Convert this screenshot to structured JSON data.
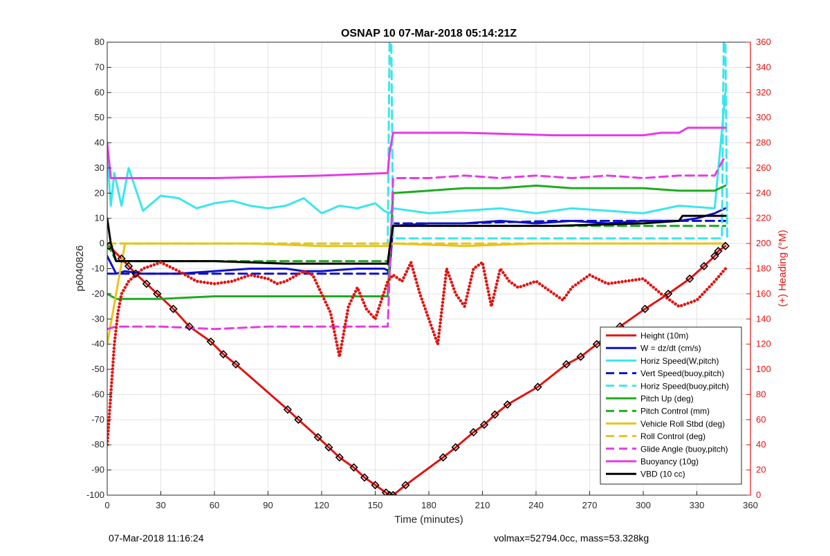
{
  "chart_data": {
    "type": "line",
    "title": "OSNAP 10 07-Mar-2018 05:14:21Z",
    "xlabel": "Time (minutes)",
    "ylabel_left": "p6040826",
    "ylabel_right": "(+) Heading (°M)",
    "xlim": [
      0,
      360
    ],
    "ylim_left": [
      -100,
      80
    ],
    "ylim_right": [
      0,
      360
    ],
    "xticks": [
      0,
      30,
      60,
      90,
      120,
      150,
      180,
      210,
      240,
      270,
      300,
      330,
      360
    ],
    "yticks_left": [
      -100,
      -90,
      -80,
      -70,
      -60,
      -50,
      -40,
      -30,
      -20,
      -10,
      0,
      10,
      20,
      30,
      40,
      50,
      60,
      70,
      80
    ],
    "yticks_right": [
      0,
      20,
      40,
      60,
      80,
      100,
      120,
      140,
      160,
      180,
      200,
      220,
      240,
      260,
      280,
      300,
      320,
      340,
      360
    ],
    "grid": true,
    "legend_position": "bottom-right",
    "colors": {
      "red": "#e2120f",
      "blue": "#1010c8",
      "cyan": "#3ae6ec",
      "green": "#1faa1f",
      "yellow": "#e8c41a",
      "magenta": "#e63ae6",
      "black": "#000000",
      "right_axis": "#e2120f"
    },
    "series": [
      {
        "name": "Height (10m)",
        "color": "#e2120f",
        "dash": "solid",
        "axis": "left",
        "x": [
          1,
          8,
          12,
          16,
          22,
          28,
          37,
          46,
          58,
          65,
          72,
          101,
          107,
          118,
          124,
          130,
          138,
          144,
          150,
          156,
          158,
          160,
          167,
          188,
          195,
          205,
          211,
          217,
          224,
          241,
          257,
          265,
          274,
          287,
          301,
          314,
          326,
          334,
          340,
          342,
          346
        ],
        "y": [
          -1,
          -6,
          -9,
          -12,
          -16,
          -20,
          -26,
          -33,
          -39,
          -44,
          -48,
          -66,
          -70,
          -77,
          -81,
          -85,
          -89,
          -93,
          -96,
          -99,
          -100,
          -100,
          -96,
          -85,
          -81,
          -75,
          -72,
          -68,
          -64,
          -57,
          -48,
          -45,
          -40,
          -33,
          -26,
          -20,
          -14,
          -9,
          -5,
          -3,
          -1
        ]
      },
      {
        "name": "W = dz/dt (cm/s)",
        "color": "#1010c8",
        "dash": "solid",
        "axis": "left",
        "x": [
          0,
          5,
          10,
          20,
          40,
          60,
          80,
          100,
          110,
          120,
          140,
          155,
          158,
          160,
          180,
          200,
          220,
          240,
          260,
          280,
          300,
          320,
          330,
          340,
          346
        ],
        "y": [
          -5,
          -12,
          -11,
          -12,
          -12,
          -11,
          -10,
          -10,
          -11,
          -11,
          -10,
          -10,
          -11,
          7,
          8,
          8,
          9,
          8,
          9,
          8,
          9,
          9,
          10,
          12,
          14
        ]
      },
      {
        "name": "Horiz Speed(W,pitch)",
        "color": "#3ae6ec",
        "dash": "solid",
        "axis": "left",
        "x": [
          0,
          2,
          4,
          8,
          12,
          20,
          30,
          40,
          50,
          60,
          70,
          80,
          90,
          100,
          110,
          120,
          130,
          140,
          150,
          155,
          158,
          160,
          180,
          200,
          220,
          240,
          260,
          280,
          300,
          320,
          340,
          346
        ],
        "y": [
          35,
          15,
          28,
          15,
          30,
          13,
          19,
          18,
          14,
          16,
          17,
          15,
          14,
          15,
          18,
          12,
          15,
          14,
          16,
          13,
          12,
          14,
          12,
          13,
          14,
          12,
          14,
          13,
          12,
          15,
          14,
          60
        ]
      },
      {
        "name": "Vert Speed(buoy,pitch)",
        "color": "#1010c8",
        "dash": "dashed",
        "axis": "left",
        "x": [
          0,
          10,
          40,
          80,
          120,
          157,
          160,
          200,
          250,
          300,
          346
        ],
        "y": [
          -12,
          -12,
          -12,
          -12,
          -12,
          -12,
          8,
          8,
          9,
          9,
          9
        ]
      },
      {
        "name": "Horiz Speed(buoy,pitch)",
        "color": "#3ae6ec",
        "dash": "dashed",
        "axis": "left",
        "x": [
          0,
          155,
          157,
          158,
          159,
          160,
          340,
          344,
          345,
          346,
          347
        ],
        "y": [
          0,
          0,
          0,
          80,
          80,
          2,
          2,
          2,
          80,
          80,
          2
        ]
      },
      {
        "name": "Pitch Up (deg)",
        "color": "#1faa1f",
        "dash": "solid",
        "axis": "left",
        "x": [
          0,
          5,
          10,
          30,
          60,
          90,
          120,
          150,
          157,
          160,
          180,
          200,
          220,
          240,
          260,
          280,
          300,
          320,
          340,
          346
        ],
        "y": [
          -20,
          -22,
          -22,
          -22,
          -21,
          -21,
          -21,
          -21,
          -21,
          20,
          21,
          22,
          22,
          23,
          22,
          22,
          22,
          21,
          21,
          23
        ]
      },
      {
        "name": "Pitch Control (mm)",
        "color": "#1faa1f",
        "dash": "dashed",
        "axis": "left",
        "x": [
          0,
          5,
          60,
          157,
          160,
          250,
          346
        ],
        "y": [
          0,
          -7,
          -7,
          -7,
          7,
          7,
          7
        ]
      },
      {
        "name": "Vehicle Roll Stbd (deg)",
        "color": "#e8c41a",
        "dash": "solid",
        "axis": "left",
        "x": [
          0,
          10,
          40,
          80,
          120,
          157,
          160,
          200,
          240,
          280,
          320,
          346
        ],
        "y": [
          -40,
          0,
          0,
          0,
          -1,
          -1,
          0,
          -1,
          0,
          0,
          0,
          0
        ]
      },
      {
        "name": "Roll Control (deg)",
        "color": "#e8c41a",
        "dash": "dashed",
        "axis": "left",
        "x": [
          0,
          10,
          40,
          80,
          120,
          157,
          160,
          200,
          240,
          280,
          320,
          346
        ],
        "y": [
          0,
          0,
          0,
          0,
          0,
          0,
          0,
          0,
          0,
          0,
          0,
          0
        ]
      },
      {
        "name": "Glide Angle (buoy,pitch)",
        "color": "#e63ae6",
        "dash": "dashed",
        "axis": "left",
        "x": [
          0,
          5,
          30,
          60,
          90,
          120,
          150,
          157,
          160,
          180,
          200,
          220,
          240,
          260,
          280,
          300,
          320,
          340,
          346
        ],
        "y": [
          -34,
          -33,
          -33,
          -34,
          -33,
          -33,
          -33,
          -33,
          26,
          26,
          27,
          26,
          27,
          26,
          27,
          26,
          27,
          27,
          35
        ]
      },
      {
        "name": "Buoyancy (10g)",
        "color": "#e63ae6",
        "dash": "solid",
        "axis": "left",
        "x": [
          0,
          2,
          60,
          120,
          157,
          158,
          160,
          200,
          250,
          300,
          310,
          320,
          325,
          346
        ],
        "y": [
          40,
          26,
          26,
          27,
          28,
          36,
          44,
          44,
          43,
          43,
          44,
          44,
          46,
          46
        ]
      },
      {
        "name": "VBD (10 cc)",
        "color": "#000000",
        "dash": "solid",
        "axis": "left",
        "x": [
          0,
          2,
          5,
          60,
          100,
          157,
          158,
          160,
          250,
          300,
          320,
          322,
          340,
          346
        ],
        "y": [
          10,
          0,
          -7,
          -7,
          -8,
          -8,
          -2,
          7,
          7,
          8,
          9,
          11,
          11,
          11
        ]
      },
      {
        "name": "Heading",
        "color": "#e2120f",
        "dash": "dotted",
        "axis": "right",
        "x": [
          0,
          2,
          4,
          6,
          8,
          12,
          20,
          30,
          40,
          50,
          60,
          70,
          80,
          90,
          95,
          100,
          110,
          115,
          120,
          125,
          130,
          135,
          140,
          145,
          150,
          157,
          160,
          165,
          170,
          175,
          180,
          185,
          190,
          195,
          200,
          205,
          210,
          215,
          220,
          225,
          230,
          240,
          250,
          255,
          260,
          270,
          280,
          290,
          300,
          310,
          320,
          330,
          340,
          346
        ],
        "y": [
          40,
          80,
          120,
          145,
          160,
          170,
          180,
          185,
          178,
          170,
          168,
          170,
          175,
          172,
          168,
          170,
          178,
          175,
          160,
          145,
          110,
          150,
          165,
          148,
          140,
          170,
          175,
          170,
          185,
          160,
          140,
          120,
          180,
          160,
          150,
          180,
          185,
          150,
          180,
          170,
          165,
          170,
          160,
          155,
          165,
          175,
          168,
          170,
          172,
          160,
          150,
          155,
          170,
          180
        ]
      }
    ]
  },
  "footer": {
    "left": "07-Mar-2018 11:16:24",
    "right": "volmax=52794.0cc, mass=53.328kg"
  }
}
